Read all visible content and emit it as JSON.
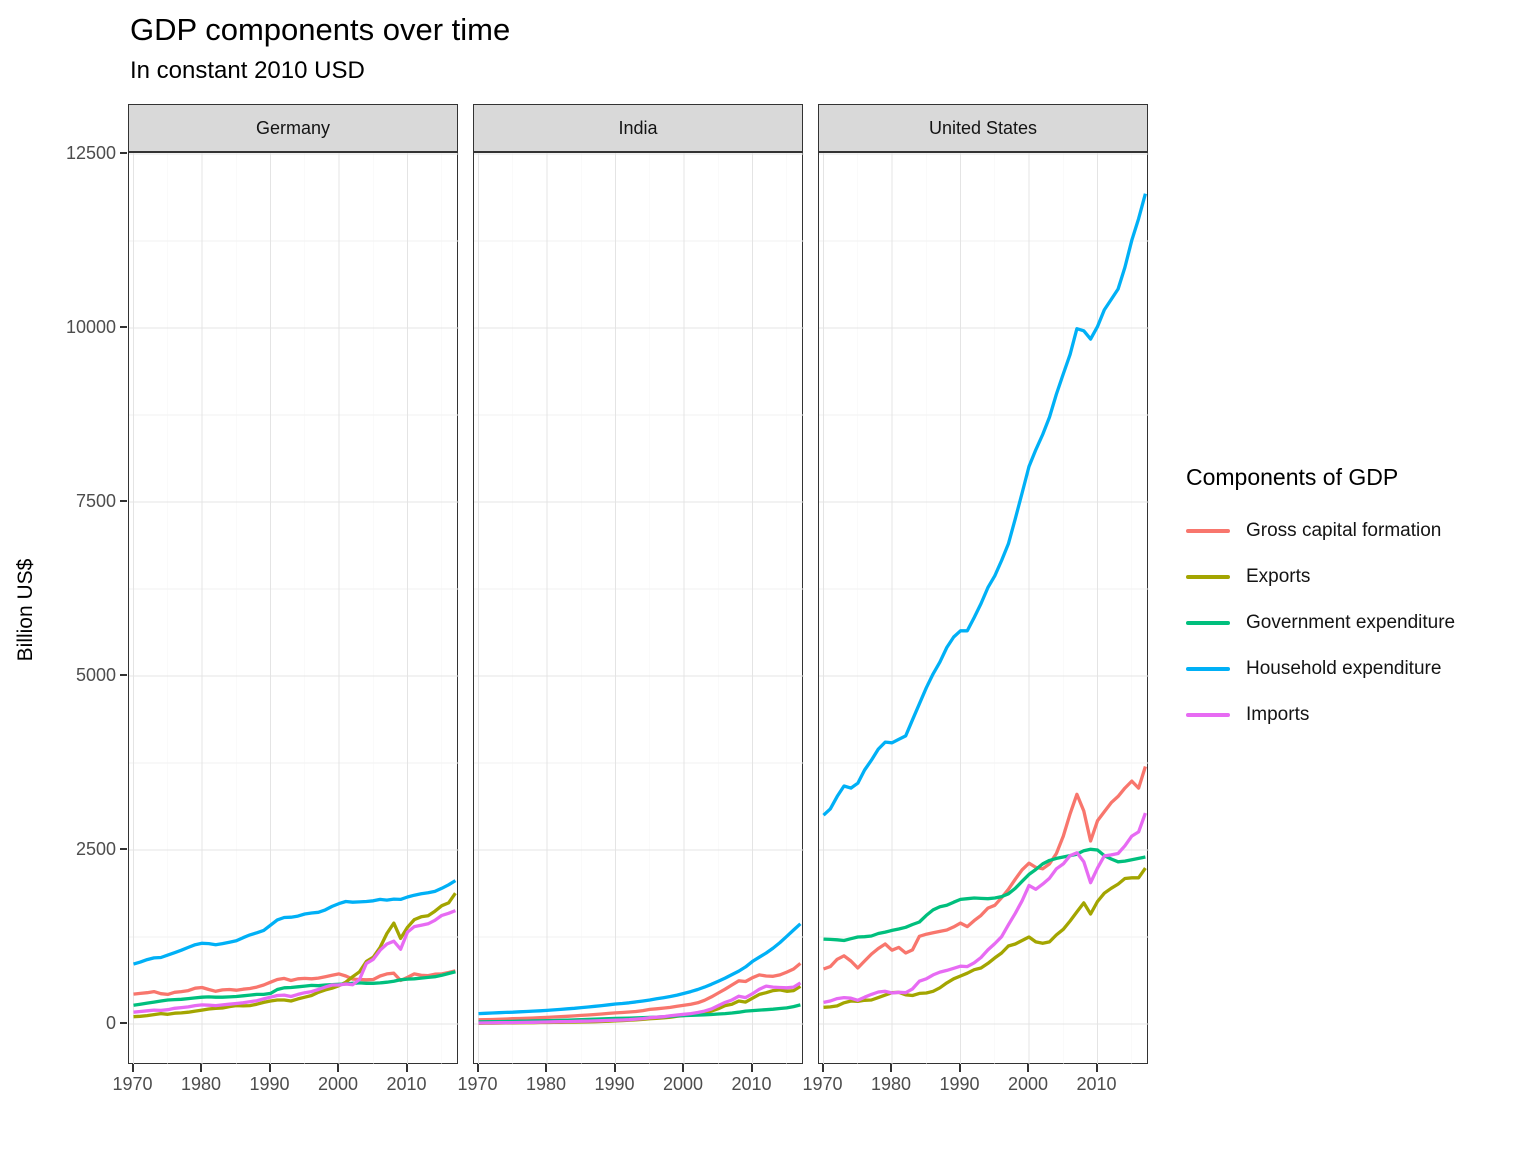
{
  "chart_data": {
    "type": "line",
    "title": "GDP components over time",
    "subtitle": "In constant 2010 USD",
    "ylabel": "Billion US$",
    "xlabel": "",
    "grid": "on",
    "legend_position": "right",
    "legend_title": "Components of GDP",
    "legend": {
      "title": "Components of GDP",
      "entries": [
        {
          "label": "Gross capital formation",
          "color": "#F8766D"
        },
        {
          "label": "Exports",
          "color": "#A3A500"
        },
        {
          "label": "Government expenditure",
          "color": "#00BF7D"
        },
        {
          "label": "Household expenditure",
          "color": "#00B0F6"
        },
        {
          "label": "Imports",
          "color": "#E76BF3"
        }
      ]
    },
    "x": [
      1970,
      1971,
      1972,
      1973,
      1974,
      1975,
      1976,
      1977,
      1978,
      1979,
      1980,
      1981,
      1982,
      1983,
      1984,
      1985,
      1986,
      1987,
      1988,
      1989,
      1990,
      1991,
      1992,
      1993,
      1994,
      1995,
      1996,
      1997,
      1998,
      1999,
      2000,
      2001,
      2002,
      2003,
      2004,
      2005,
      2006,
      2007,
      2008,
      2009,
      2010,
      2011,
      2012,
      2013,
      2014,
      2015,
      2016,
      2017
    ],
    "x_ticks": [
      1970,
      1980,
      1990,
      2000,
      2010
    ],
    "x_minor_ticks": [
      1975,
      1985,
      1995,
      2005,
      2015
    ],
    "y_ticks": [
      0,
      2500,
      5000,
      7500,
      10000,
      12500
    ],
    "y_minor_ticks": [
      1250,
      3750,
      6250,
      8750,
      11250
    ],
    "ylim": [
      0,
      12500
    ],
    "facets": [
      {
        "label": "Germany",
        "series": [
          {
            "name": "Gross capital formation",
            "color": "#F8766D",
            "values": [
              430,
              440,
              450,
              465,
              435,
              425,
              455,
              465,
              480,
              515,
              525,
              495,
              470,
              490,
              495,
              485,
              500,
              510,
              530,
              560,
              600,
              640,
              655,
              625,
              650,
              655,
              650,
              660,
              680,
              700,
              720,
              690,
              645,
              640,
              635,
              640,
              690,
              720,
              730,
              625,
              670,
              720,
              700,
              695,
              715,
              720,
              740,
              765
            ]
          },
          {
            "name": "Exports",
            "color": "#A3A500",
            "values": [
              105,
              110,
              120,
              135,
              150,
              140,
              155,
              160,
              170,
              185,
              200,
              215,
              225,
              230,
              250,
              265,
              260,
              265,
              285,
              310,
              330,
              345,
              345,
              330,
              360,
              385,
              410,
              455,
              490,
              515,
              550,
              600,
              680,
              750,
              900,
              960,
              1100,
              1300,
              1450,
              1230,
              1390,
              1500,
              1540,
              1555,
              1620,
              1700,
              1740,
              1880
            ]
          },
          {
            "name": "Government expenditure",
            "color": "#00BF7D",
            "values": [
              270,
              285,
              300,
              315,
              330,
              345,
              350,
              355,
              365,
              375,
              385,
              390,
              385,
              385,
              390,
              395,
              405,
              415,
              425,
              425,
              440,
              495,
              520,
              525,
              535,
              545,
              555,
              550,
              560,
              565,
              570,
              575,
              585,
              590,
              585,
              585,
              590,
              600,
              615,
              635,
              645,
              650,
              660,
              670,
              680,
              700,
              725,
              750
            ]
          },
          {
            "name": "Household expenditure",
            "color": "#00B0F6",
            "values": [
              860,
              890,
              925,
              950,
              955,
              990,
              1025,
              1060,
              1100,
              1140,
              1160,
              1155,
              1140,
              1155,
              1175,
              1195,
              1240,
              1280,
              1310,
              1345,
              1420,
              1495,
              1530,
              1535,
              1550,
              1580,
              1595,
              1605,
              1640,
              1690,
              1730,
              1760,
              1750,
              1755,
              1760,
              1770,
              1790,
              1780,
              1795,
              1790,
              1825,
              1850,
              1870,
              1885,
              1905,
              1950,
              2000,
              2060
            ]
          },
          {
            "name": "Imports",
            "color": "#E76BF3",
            "values": [
              170,
              180,
              190,
              200,
              195,
              205,
              225,
              235,
              245,
              265,
              275,
              270,
              265,
              275,
              285,
              295,
              305,
              320,
              335,
              360,
              385,
              410,
              415,
              395,
              425,
              450,
              465,
              495,
              530,
              560,
              560,
              575,
              565,
              640,
              870,
              930,
              1060,
              1150,
              1190,
              1075,
              1320,
              1400,
              1420,
              1440,
              1490,
              1560,
              1590,
              1630
            ]
          }
        ]
      },
      {
        "label": "India",
        "series": [
          {
            "name": "Gross capital formation",
            "color": "#F8766D",
            "values": [
              60,
              63,
              65,
              68,
              72,
              76,
              79,
              82,
              86,
              90,
              95,
              100,
              106,
              111,
              117,
              124,
              130,
              136,
              144,
              152,
              160,
              165,
              172,
              180,
              192,
              210,
              218,
              228,
              238,
              255,
              268,
              285,
              305,
              340,
              390,
              445,
              500,
              560,
              620,
              610,
              665,
              705,
              690,
              685,
              705,
              745,
              790,
              870
            ]
          },
          {
            "name": "Exports",
            "color": "#A3A500",
            "values": [
              10,
              11,
              12,
              13,
              14,
              15,
              16,
              18,
              19,
              21,
              22,
              24,
              25,
              26,
              27,
              29,
              31,
              33,
              36,
              40,
              44,
              49,
              54,
              60,
              67,
              76,
              82,
              87,
              98,
              110,
              122,
              132,
              152,
              165,
              185,
              220,
              265,
              285,
              330,
              315,
              370,
              425,
              450,
              480,
              490,
              470,
              480,
              540
            ]
          },
          {
            "name": "Government expenditure",
            "color": "#00BF7D",
            "values": [
              30,
              32,
              33,
              35,
              36,
              38,
              40,
              42,
              44,
              46,
              48,
              51,
              53,
              56,
              59,
              62,
              66,
              69,
              73,
              77,
              80,
              82,
              85,
              88,
              91,
              95,
              98,
              103,
              110,
              117,
              121,
              125,
              128,
              132,
              137,
              143,
              150,
              158,
              170,
              185,
              193,
              200,
              205,
              212,
              222,
              232,
              250,
              275
            ]
          },
          {
            "name": "Household expenditure",
            "color": "#00B0F6",
            "values": [
              150,
              154,
              158,
              162,
              166,
              170,
              175,
              180,
              185,
              190,
              196,
              203,
              210,
              218,
              226,
              235,
              244,
              254,
              265,
              276,
              288,
              295,
              305,
              317,
              330,
              345,
              362,
              378,
              395,
              415,
              440,
              465,
              495,
              530,
              570,
              615,
              660,
              710,
              760,
              820,
              900,
              960,
              1020,
              1090,
              1170,
              1260,
              1350,
              1440
            ]
          },
          {
            "name": "Imports",
            "color": "#E76BF3",
            "values": [
              15,
              16,
              17,
              18,
              19,
              20,
              21,
              23,
              25,
              27,
              29,
              31,
              33,
              35,
              37,
              40,
              42,
              44,
              48,
              52,
              55,
              57,
              62,
              70,
              78,
              90,
              98,
              105,
              118,
              130,
              140,
              150,
              165,
              185,
              215,
              265,
              310,
              345,
              400,
              380,
              435,
              500,
              545,
              530,
              525,
              520,
              530,
              590
            ]
          }
        ]
      },
      {
        "label": "United States",
        "series": [
          {
            "name": "Gross capital formation",
            "color": "#F8766D",
            "values": [
              790,
              825,
              930,
              980,
              905,
              805,
              905,
              1005,
              1085,
              1150,
              1060,
              1100,
              1020,
              1065,
              1260,
              1290,
              1310,
              1330,
              1350,
              1395,
              1450,
              1400,
              1485,
              1560,
              1665,
              1705,
              1815,
              1935,
              2080,
              2215,
              2310,
              2250,
              2230,
              2300,
              2450,
              2700,
              3020,
              3300,
              3060,
              2630,
              2920,
              3050,
              3180,
              3270,
              3390,
              3490,
              3390,
              3700
            ]
          },
          {
            "name": "Exports",
            "color": "#A3A500",
            "values": [
              240,
              245,
              260,
              305,
              330,
              325,
              340,
              345,
              380,
              415,
              450,
              455,
              420,
              410,
              440,
              445,
              470,
              520,
              590,
              650,
              690,
              730,
              780,
              805,
              870,
              950,
              1020,
              1120,
              1150,
              1200,
              1250,
              1180,
              1160,
              1180,
              1280,
              1360,
              1480,
              1610,
              1740,
              1580,
              1760,
              1880,
              1950,
              2010,
              2090,
              2100,
              2100,
              2240
            ]
          },
          {
            "name": "Government expenditure",
            "color": "#00BF7D",
            "values": [
              1220,
              1215,
              1210,
              1200,
              1225,
              1250,
              1255,
              1265,
              1300,
              1320,
              1345,
              1365,
              1390,
              1430,
              1465,
              1560,
              1640,
              1685,
              1705,
              1750,
              1790,
              1800,
              1810,
              1805,
              1800,
              1810,
              1830,
              1870,
              1950,
              2050,
              2150,
              2220,
              2300,
              2350,
              2380,
              2400,
              2420,
              2440,
              2490,
              2510,
              2500,
              2420,
              2370,
              2330,
              2340,
              2360,
              2380,
              2400
            ]
          },
          {
            "name": "Household expenditure",
            "color": "#00B0F6",
            "values": [
              3000,
              3090,
              3270,
              3420,
              3390,
              3460,
              3650,
              3790,
              3950,
              4050,
              4040,
              4090,
              4140,
              4370,
              4600,
              4830,
              5030,
              5200,
              5410,
              5560,
              5650,
              5650,
              5840,
              6040,
              6270,
              6440,
              6660,
              6900,
              7260,
              7630,
              8010,
              8250,
              8470,
              8720,
              9050,
              9340,
              9620,
              9990,
              9960,
              9840,
              10020,
              10260,
              10410,
              10560,
              10870,
              11260,
              11570,
              11930
            ]
          },
          {
            "name": "Imports",
            "color": "#E76BF3",
            "values": [
              310,
              330,
              365,
              380,
              370,
              340,
              385,
              425,
              460,
              470,
              445,
              455,
              450,
              505,
              615,
              650,
              705,
              745,
              770,
              800,
              830,
              825,
              880,
              955,
              1065,
              1155,
              1255,
              1425,
              1590,
              1770,
              1990,
              1935,
              2010,
              2095,
              2230,
              2300,
              2420,
              2460,
              2330,
              2030,
              2240,
              2415,
              2430,
              2450,
              2560,
              2700,
              2760,
              3030
            ]
          }
        ]
      }
    ]
  }
}
